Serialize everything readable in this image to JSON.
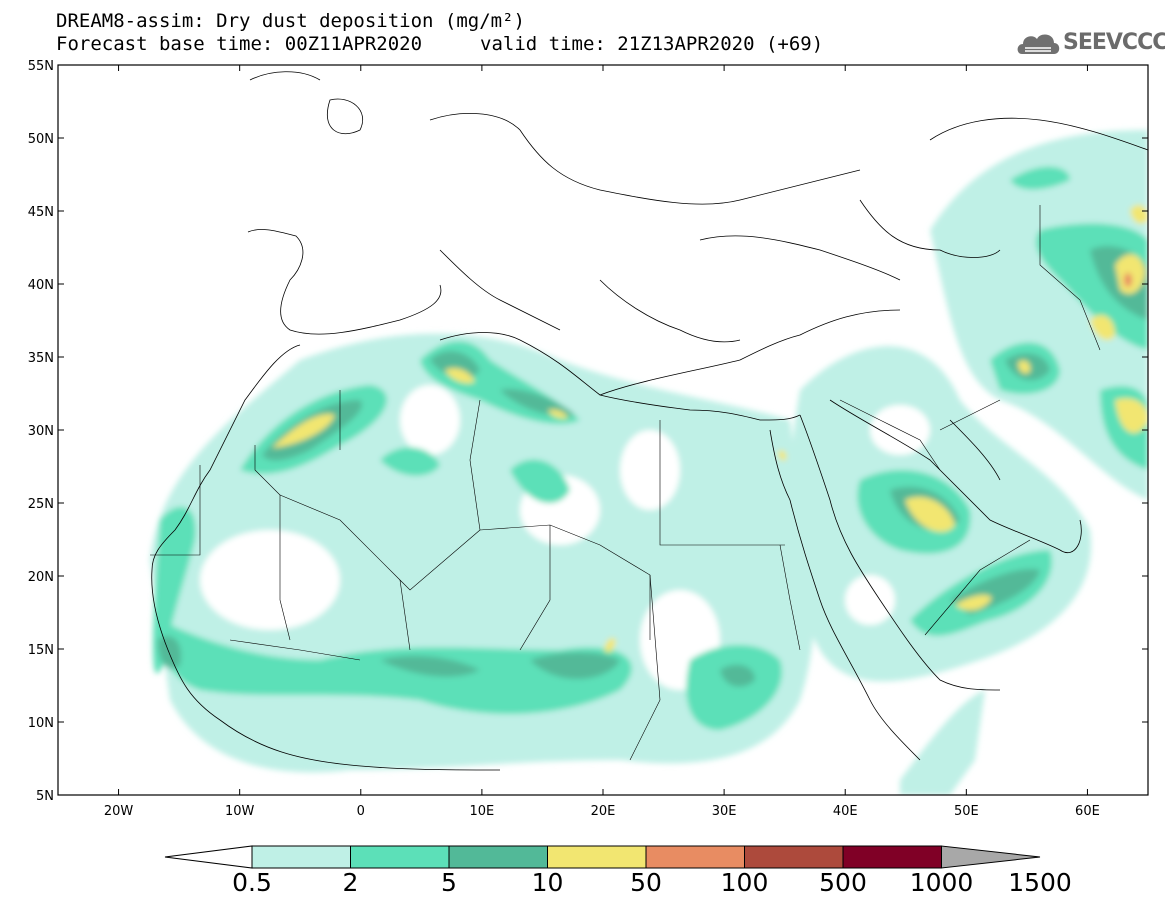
{
  "header": {
    "title_line1": "DREAM8-assim: Dry dust deposition (mg/m²)",
    "title_line2_left": "Forecast base time: 00Z11APR2020",
    "title_line2_right": "valid time: 21Z13APR2020 (+69)",
    "logo_text": "SEEVCCC",
    "logo_icon": "cloud-logo-icon"
  },
  "map": {
    "projection": "lat-lon",
    "lon_range": [
      -25,
      65
    ],
    "lat_range": [
      5,
      55
    ],
    "lat_ticks": [
      "55N",
      "50N",
      "45N",
      "40N",
      "35N",
      "30N",
      "25N",
      "20N",
      "15N",
      "10N",
      "5N"
    ],
    "lon_ticks": [
      "20W",
      "10W",
      "0",
      "10E",
      "20E",
      "30E",
      "40E",
      "50E",
      "60E"
    ]
  },
  "colorbar": {
    "levels": [
      "0.5",
      "2",
      "5",
      "10",
      "50",
      "100",
      "500",
      "1000",
      "1500"
    ],
    "colors": [
      "#bff0e6",
      "#5ce0b8",
      "#52b998",
      "#f2e671",
      "#e88c62",
      "#ad4a3c",
      "#800026",
      "#8a6a9e",
      "#a8a8a8"
    ],
    "under_color": "#ffffff",
    "over_color": "#a8a8a8"
  }
}
